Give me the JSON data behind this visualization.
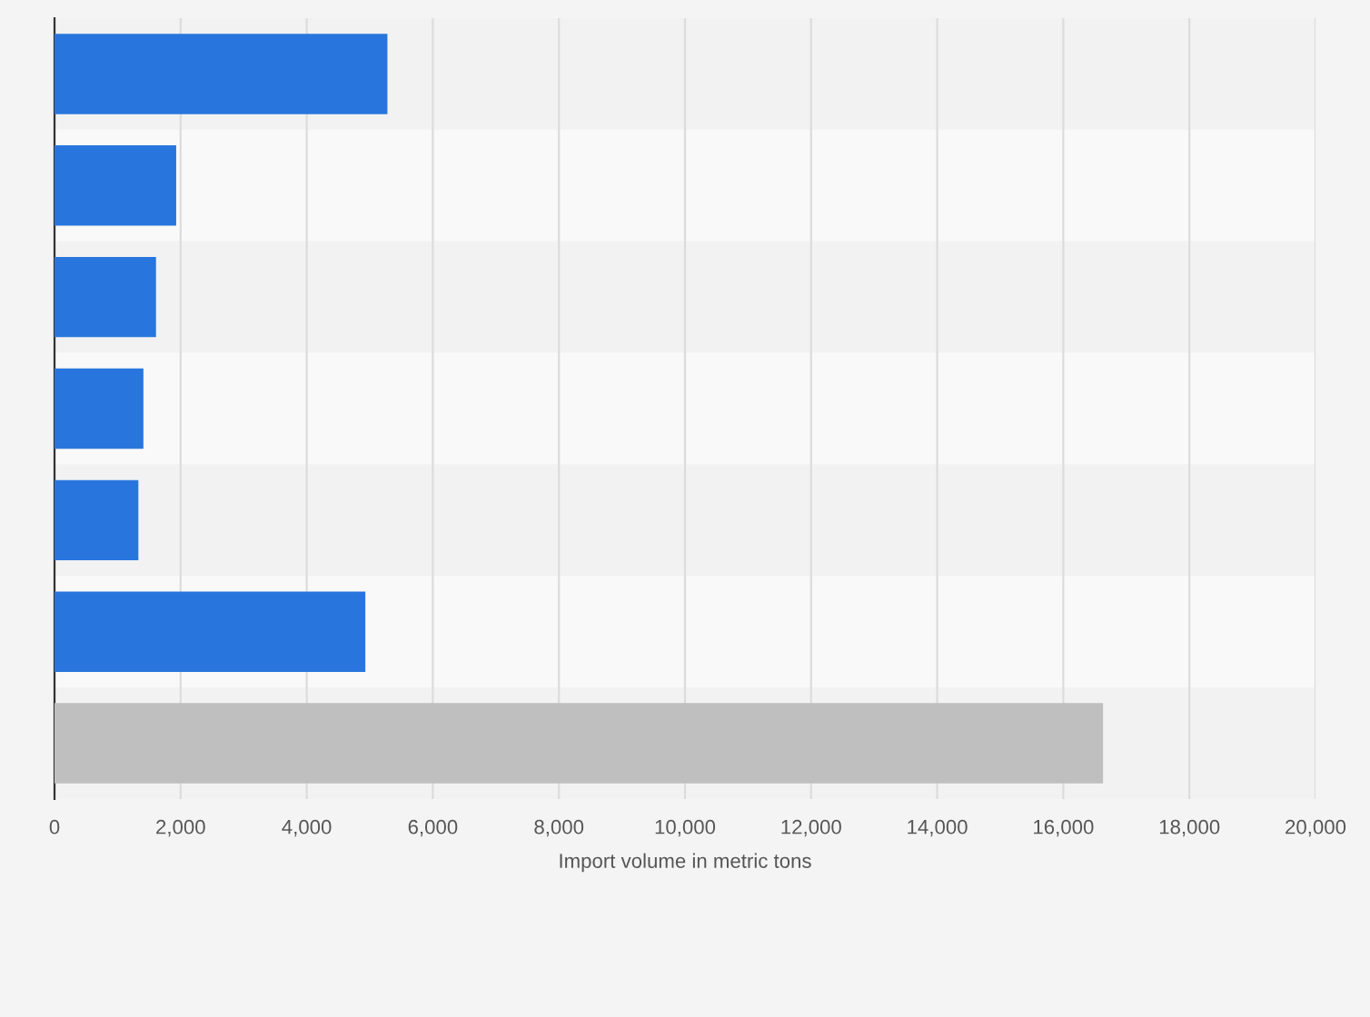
{
  "chart_data": {
    "type": "bar",
    "orientation": "horizontal",
    "categories": [
      null,
      null,
      null,
      null,
      null,
      null,
      null
    ],
    "values": [
      5280,
      1930,
      1610,
      1410,
      1330,
      4930,
      16630
    ],
    "colors": [
      "#2876dd",
      "#2876dd",
      "#2876dd",
      "#2876dd",
      "#2876dd",
      "#2876dd",
      "#bfbfbf"
    ],
    "xlabel": "Import volume in metric tons",
    "xlim": [
      0,
      20000
    ],
    "xticks": [
      0,
      {
        "value": 2000,
        "label": "2,000"
      },
      {
        "value": 4000,
        "label": "4,000"
      },
      {
        "value": 6000,
        "label": "6,000"
      },
      {
        "value": 8000,
        "label": "8,000"
      },
      {
        "value": 10000,
        "label": "10,000"
      },
      {
        "value": 12000,
        "label": "12,000"
      },
      {
        "value": 14000,
        "label": "14,000"
      },
      {
        "value": 16000,
        "label": "16,000"
      },
      {
        "value": 18000,
        "label": "18,000"
      },
      {
        "value": 20000,
        "label": "20,000"
      }
    ],
    "grid": "x"
  }
}
